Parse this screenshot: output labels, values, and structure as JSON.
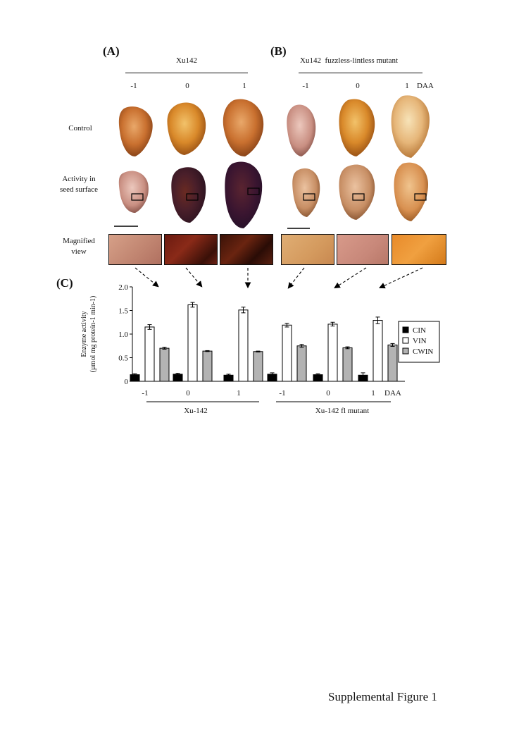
{
  "panel_a": {
    "label": "(A)",
    "title": "Xu142",
    "days": [
      "-1",
      "0",
      "1"
    ]
  },
  "panel_b": {
    "label": "(B)",
    "title": "Xu142  fuzzless-lintless mutant",
    "days": [
      "-1",
      "0",
      "1"
    ],
    "day_unit": "DAA"
  },
  "row_labels": {
    "control": "Control",
    "activity": "Activity in seed surface",
    "magnified": "Magnified view"
  },
  "panel_c": {
    "label": "(C)"
  },
  "chart_data": {
    "type": "bar",
    "ylabel": "Enzyme activity (µmol mg protein-1 min-1)",
    "ylim": [
      0,
      2.0
    ],
    "yticks": [
      "0",
      "0.5",
      "1.0",
      "1.5",
      "2.0"
    ],
    "categories": [
      "-1",
      "0",
      "1",
      "-1",
      "0",
      "1"
    ],
    "x_unit": "DAA",
    "groups": [
      {
        "label": "Xu-142",
        "categories": [
          "-1",
          "0",
          "1"
        ]
      },
      {
        "label": "Xu-142 fl mutant",
        "categories": [
          "-1",
          "0",
          "1"
        ]
      }
    ],
    "series": [
      {
        "name": "CIN",
        "color": "#000000",
        "values": [
          0.14,
          0.15,
          0.13,
          0.15,
          0.14,
          0.13
        ],
        "errors": [
          0.02,
          0.02,
          0.02,
          0.03,
          0.02,
          0.05
        ]
      },
      {
        "name": "VIN",
        "color": "#ffffff",
        "values": [
          1.15,
          1.62,
          1.51,
          1.19,
          1.21,
          1.29
        ],
        "errors": [
          0.05,
          0.05,
          0.06,
          0.04,
          0.04,
          0.07
        ]
      },
      {
        "name": "CWIN",
        "color": "#b3b3b3",
        "values": [
          0.7,
          0.64,
          0.63,
          0.75,
          0.71,
          0.77
        ],
        "errors": [
          0.02,
          0.01,
          0.01,
          0.03,
          0.02,
          0.03
        ]
      }
    ]
  },
  "caption": "Supplemental Figure 1"
}
